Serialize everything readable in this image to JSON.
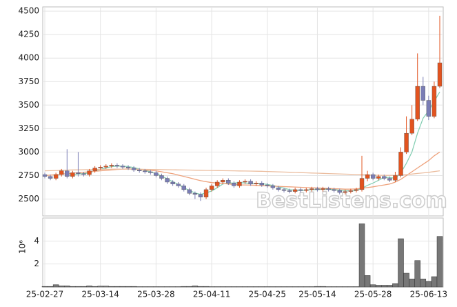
{
  "chart_data": {
    "type": "candlestick",
    "categories": [
      "25-02-27",
      null,
      null,
      null,
      null,
      null,
      null,
      null,
      null,
      null,
      "25-03-14",
      null,
      null,
      null,
      null,
      null,
      null,
      null,
      null,
      null,
      "25-03-28",
      null,
      null,
      null,
      null,
      null,
      null,
      null,
      null,
      null,
      "25-04-11",
      null,
      null,
      null,
      null,
      null,
      null,
      null,
      null,
      null,
      "25-04-25",
      null,
      null,
      null,
      null,
      null,
      null,
      null,
      null,
      "25-05-14",
      null,
      null,
      null,
      null,
      null,
      null,
      null,
      null,
      null,
      "25-05-28",
      null,
      null,
      null,
      null,
      null,
      null,
      null,
      null,
      null,
      "25-06-13",
      null,
      null
    ],
    "open": [
      2760,
      2740,
      2720,
      2760,
      2800,
      2740,
      2780,
      2770,
      2760,
      2800,
      2830,
      2840,
      2850,
      2860,
      2850,
      2840,
      2830,
      2810,
      2800,
      2790,
      2780,
      2750,
      2720,
      2680,
      2660,
      2640,
      2600,
      2560,
      2550,
      2520,
      2600,
      2640,
      2680,
      2700,
      2670,
      2640,
      2680,
      2690,
      2660,
      2670,
      2650,
      2640,
      2620,
      2600,
      2590,
      2580,
      2600,
      2590,
      2600,
      2610,
      2600,
      2610,
      2600,
      2590,
      2570,
      2580,
      2590,
      2600,
      2720,
      2760,
      2720,
      2740,
      2720,
      2700,
      2750,
      3000,
      3200,
      3350,
      3700,
      3550,
      3380,
      3700
    ],
    "high": [
      2780,
      2760,
      2780,
      2820,
      3030,
      2800,
      3000,
      2790,
      2820,
      2850,
      2860,
      2870,
      2880,
      2880,
      2870,
      2860,
      2850,
      2830,
      2820,
      2810,
      2800,
      2770,
      2740,
      2700,
      2680,
      2660,
      2620,
      2580,
      2570,
      2620,
      2660,
      2700,
      2720,
      2720,
      2690,
      2700,
      2710,
      2710,
      2690,
      2690,
      2670,
      2660,
      2640,
      2620,
      2610,
      2620,
      2620,
      2620,
      2630,
      2630,
      2630,
      2630,
      2620,
      2610,
      2600,
      2610,
      2620,
      2960,
      2800,
      2780,
      2760,
      2760,
      2740,
      2790,
      3050,
      3380,
      3500,
      4050,
      3800,
      3600,
      3750,
      4450
    ],
    "low": [
      2720,
      2700,
      2700,
      2740,
      2720,
      2720,
      2740,
      2740,
      2740,
      2780,
      2810,
      2820,
      2830,
      2830,
      2820,
      2810,
      2790,
      2780,
      2770,
      2760,
      2730,
      2700,
      2660,
      2640,
      2620,
      2580,
      2540,
      2500,
      2480,
      2500,
      2580,
      2620,
      2660,
      2650,
      2620,
      2620,
      2660,
      2640,
      2640,
      2630,
      2620,
      2600,
      2580,
      2570,
      2560,
      2560,
      2570,
      2570,
      2580,
      2580,
      2580,
      2580,
      2570,
      2550,
      2550,
      2560,
      2570,
      2580,
      2690,
      2700,
      2700,
      2700,
      2680,
      2680,
      2730,
      2980,
      3180,
      3330,
      3500,
      3340,
      3360,
      3680
    ],
    "close": [
      2740,
      2720,
      2760,
      2800,
      2740,
      2780,
      2770,
      2760,
      2800,
      2830,
      2840,
      2850,
      2860,
      2850,
      2840,
      2830,
      2810,
      2800,
      2790,
      2780,
      2750,
      2720,
      2680,
      2660,
      2640,
      2600,
      2560,
      2550,
      2520,
      2600,
      2640,
      2680,
      2700,
      2670,
      2640,
      2680,
      2690,
      2660,
      2670,
      2650,
      2640,
      2620,
      2600,
      2590,
      2580,
      2600,
      2590,
      2600,
      2610,
      2600,
      2610,
      2600,
      2590,
      2570,
      2580,
      2590,
      2600,
      2720,
      2760,
      2720,
      2740,
      2720,
      2700,
      2750,
      3000,
      3200,
      3350,
      3700,
      3550,
      3380,
      3700,
      3950
    ],
    "up_color": "#e2531f",
    "down_color": "#7a7db5",
    "series": [
      {
        "color": "#86cfb4",
        "values": [
          null,
          null,
          null,
          null,
          2750,
          2760,
          2765,
          2770,
          2780,
          2800,
          2815,
          2830,
          2845,
          2850,
          2850,
          2845,
          2835,
          2820,
          2805,
          2790,
          2770,
          2745,
          2715,
          2685,
          2655,
          2620,
          2590,
          2565,
          2550,
          2565,
          2585,
          2620,
          2660,
          2670,
          2670,
          2675,
          2670,
          2665,
          2665,
          2665,
          2655,
          2645,
          2630,
          2615,
          2600,
          2595,
          2590,
          2595,
          2600,
          2600,
          2605,
          2605,
          2600,
          2595,
          2590,
          2585,
          2590,
          2615,
          2645,
          2670,
          2700,
          2730,
          2730,
          2720,
          2780,
          2880,
          3000,
          3200,
          3360,
          3440,
          3540,
          3640
        ]
      },
      {
        "color": "#eea27c",
        "values": [
          2750,
          2755,
          2760,
          2765,
          2770,
          2775,
          2780,
          2785,
          2790,
          2795,
          2800,
          2805,
          2810,
          2815,
          2818,
          2820,
          2818,
          2815,
          2810,
          2805,
          2800,
          2790,
          2780,
          2770,
          2755,
          2740,
          2725,
          2710,
          2695,
          2685,
          2675,
          2670,
          2665,
          2660,
          2655,
          2650,
          2650,
          2648,
          2645,
          2642,
          2640,
          2638,
          2635,
          2632,
          2630,
          2628,
          2625,
          2622,
          2620,
          2618,
          2615,
          2612,
          2610,
          2608,
          2605,
          2605,
          2608,
          2615,
          2622,
          2630,
          2640,
          2650,
          2660,
          2680,
          2710,
          2750,
          2790,
          2830,
          2870,
          2910,
          2960,
          3000
        ]
      },
      {
        "color": "#ebbd9f",
        "values": [
          2800,
          2802,
          2804,
          2806,
          2808,
          2810,
          2811,
          2812,
          2813,
          2814,
          2815,
          2816,
          2817,
          2818,
          2818,
          2818,
          2818,
          2817,
          2816,
          2815,
          2814,
          2813,
          2812,
          2811,
          2810,
          2809,
          2808,
          2807,
          2806,
          2805,
          2804,
          2803,
          2802,
          2801,
          2800,
          2799,
          2798,
          2797,
          2796,
          2795,
          2793,
          2791,
          2789,
          2787,
          2785,
          2783,
          2781,
          2779,
          2777,
          2775,
          2773,
          2771,
          2769,
          2767,
          2765,
          2763,
          2761,
          2759,
          2757,
          2755,
          2753,
          2752,
          2752,
          2753,
          2755,
          2760,
          2766,
          2772,
          2778,
          2784,
          2792,
          2800
        ]
      }
    ],
    "ylim": [
      2320,
      4545
    ],
    "yticks": [
      2500,
      2750,
      3000,
      3250,
      3500,
      3750,
      4000,
      4250,
      4500
    ],
    "grid": true,
    "watermark": "BestListens.com",
    "volume": {
      "multiplier_label": "10⁶",
      "color": "#777777",
      "ylim": [
        0,
        6
      ],
      "yticks": [
        2,
        4
      ],
      "values": [
        0.05,
        0.05,
        0.2,
        0.1,
        0.1,
        0.05,
        0.05,
        0.05,
        0.1,
        0.05,
        0.08,
        0.08,
        0.05,
        0.05,
        0.05,
        0.05,
        0.05,
        0.03,
        0.03,
        0.03,
        0.03,
        0.03,
        0.03,
        0.03,
        0.03,
        0.05,
        0.05,
        0.1,
        0.05,
        0.05,
        0.03,
        0.03,
        0.03,
        0.03,
        0.03,
        0.03,
        0.03,
        0.03,
        0.03,
        0.03,
        0.03,
        0.03,
        0.03,
        0.03,
        0.03,
        0.03,
        0.03,
        0.03,
        0.03,
        0.05,
        0.05,
        0.03,
        0.03,
        0.03,
        0.03,
        0.03,
        0.03,
        5.5,
        1.0,
        0.2,
        0.15,
        0.15,
        0.15,
        0.3,
        4.2,
        1.2,
        0.7,
        2.3,
        0.7,
        0.5,
        0.9,
        4.4
      ]
    }
  }
}
